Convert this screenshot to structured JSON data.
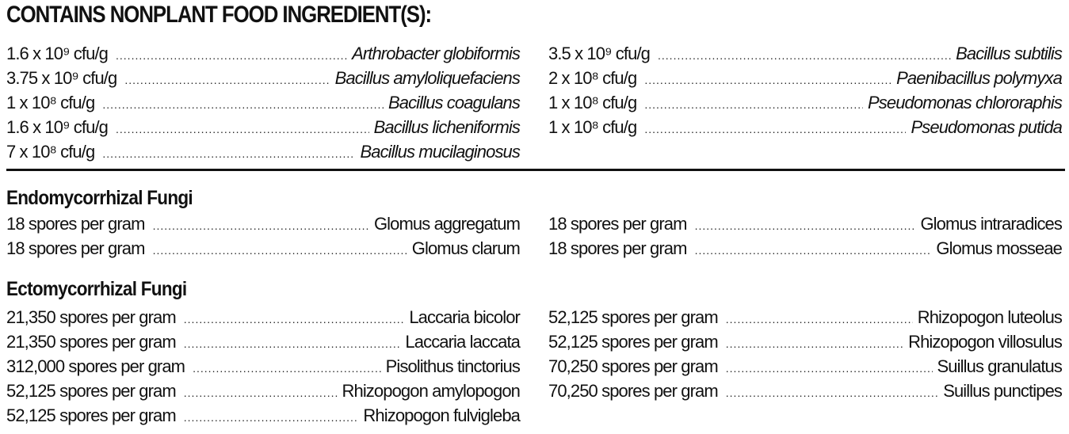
{
  "title": "CONTAINS NONPLANT FOOD INGREDIENT(S):",
  "bacteria": {
    "left": [
      {
        "amount": "1.6 x 10⁹ cfu/g",
        "name": "Arthrobacter globiformis"
      },
      {
        "amount": "3.75 x 10⁹ cfu/g",
        "name": "Bacillus amyloliquefaciens"
      },
      {
        "amount": "1 x 10⁸ cfu/g",
        "name": "Bacillus coagulans"
      },
      {
        "amount": "1.6 x 10⁹ cfu/g",
        "name": "Bacillus licheniformis"
      },
      {
        "amount": " 7 x 10⁸ cfu/g",
        "name": "Bacillus mucilaginosus"
      }
    ],
    "right": [
      {
        "amount": "3.5 x 10⁹ cfu/g",
        "name": "Bacillus subtilis"
      },
      {
        "amount": "2 x 10⁸ cfu/g",
        "name": "Paenibacillus polymyxa"
      },
      {
        "amount": "1 x 10⁸ cfu/g",
        "name": "Pseudomonas chlororaphis"
      },
      {
        "amount": "1 x 10⁸ cfu/g",
        "name": "Pseudomonas putida"
      }
    ]
  },
  "endo": {
    "heading": "Endomycorrhizal Fungi",
    "left": [
      {
        "amount": "18 spores per gram",
        "name": "Glomus aggregatum"
      },
      {
        "amount": "18 spores per gram",
        "name": "Glomus clarum"
      }
    ],
    "right": [
      {
        "amount": "18 spores per gram",
        "name": "Glomus intraradices"
      },
      {
        "amount": "18 spores per gram",
        "name": "Glomus mosseae"
      }
    ]
  },
  "ecto": {
    "heading": "Ectomycorrhizal Fungi",
    "left": [
      {
        "amount": "21,350 spores per gram",
        "name": "Laccaria bicolor"
      },
      {
        "amount": "21,350 spores per gram",
        "name": "Laccaria laccata"
      },
      {
        "amount": "312,000 spores per gram",
        "name": "Pisolithus tinctorius"
      },
      {
        "amount": "52,125 spores per gram",
        "name": "Rhizopogon amylopogon"
      },
      {
        "amount": "52,125 spores per gram",
        "name": "Rhizopogon fulvigleba"
      }
    ],
    "right": [
      {
        "amount": "52,125 spores per gram",
        "name": "Rhizopogon luteolus"
      },
      {
        "amount": "52,125 spores per gram",
        "name": "Rhizopogon villosulus"
      },
      {
        "amount": "70,250 spores per gram",
        "name": "Suillus granulatus"
      },
      {
        "amount": "70,250 spores per gram",
        "name": "Suillus punctipes"
      }
    ]
  }
}
